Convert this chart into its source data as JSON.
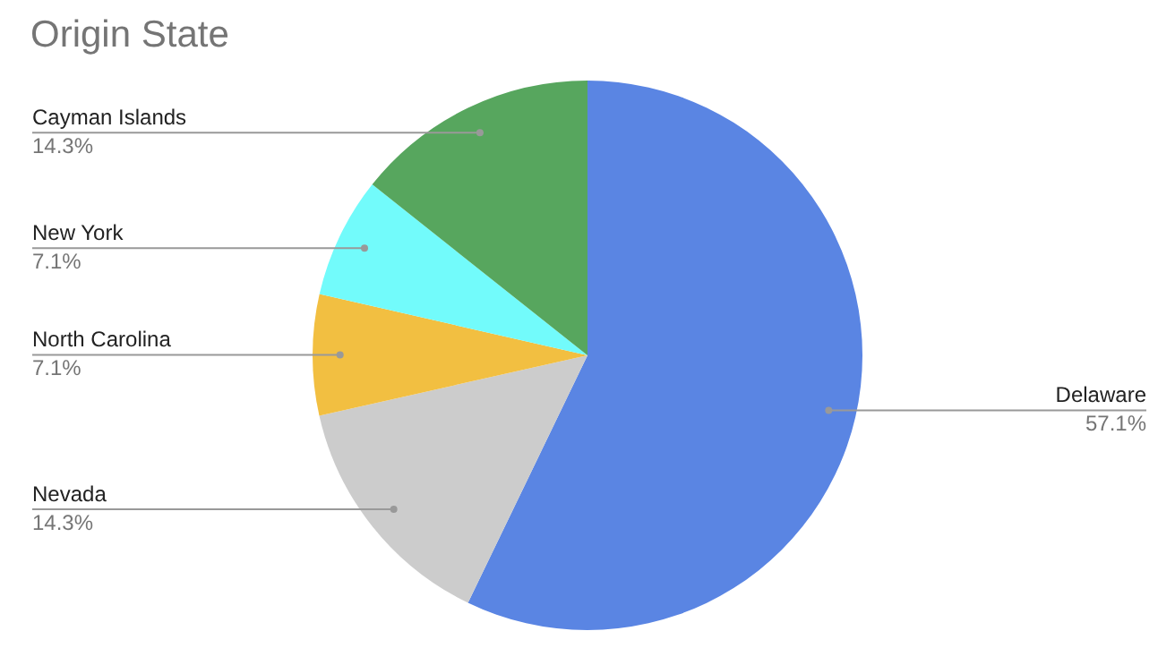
{
  "chart_data": {
    "type": "pie",
    "title": "Origin State",
    "categories": [
      "Delaware",
      "Nevada",
      "North Carolina",
      "New York",
      "Cayman Islands"
    ],
    "values": [
      57.1,
      14.3,
      7.1,
      7.1,
      14.3
    ],
    "colors": [
      "#5a85e3",
      "#cccccc",
      "#f2bf41",
      "#72fbfb",
      "#57a65e"
    ],
    "value_labels": [
      "57.1%",
      "14.3%",
      "7.1%",
      "7.1%",
      "14.3%"
    ],
    "legend": false
  }
}
